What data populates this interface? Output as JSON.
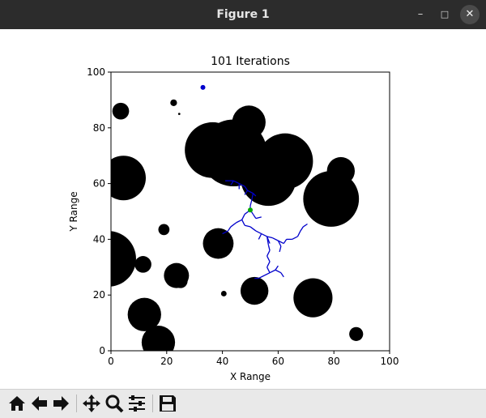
{
  "window": {
    "title": "Figure 1",
    "minimize_glyph": "–",
    "maximize_glyph": "□",
    "close_glyph": "✕"
  },
  "toolbar": {
    "buttons": [
      {
        "name": "home-icon"
      },
      {
        "name": "back-arrow-icon"
      },
      {
        "name": "forward-arrow-icon"
      },
      {
        "name": "pan-icon"
      },
      {
        "name": "zoom-icon"
      },
      {
        "name": "configure-subplots-icon"
      },
      {
        "name": "save-icon"
      }
    ]
  },
  "chart_data": {
    "type": "scatter",
    "title": "101 Iterations",
    "xlabel": "X Range",
    "ylabel": "Y Range",
    "xlim": [
      0,
      100
    ],
    "ylim": [
      0,
      100
    ],
    "xticks": [
      "0",
      "20",
      "40",
      "60",
      "80",
      "100"
    ],
    "yticks": [
      "0",
      "20",
      "40",
      "60",
      "80",
      "100"
    ],
    "grid": false,
    "obstacle_color": "#000000",
    "tree_color": "#0000cc",
    "start_color": "#0000cc",
    "goal_color": "#00aa00",
    "obstacles": [
      {
        "x": 3.5,
        "y": 86,
        "r": 3
      },
      {
        "x": 22.5,
        "y": 89,
        "r": 1.2
      },
      {
        "x": 24.5,
        "y": 85,
        "r": 0.4
      },
      {
        "x": 4.5,
        "y": 62,
        "r": 8
      },
      {
        "x": 49.5,
        "y": 82,
        "r": 6
      },
      {
        "x": 36.5,
        "y": 72,
        "r": 10
      },
      {
        "x": 44,
        "y": 71,
        "r": 12
      },
      {
        "x": 56.5,
        "y": 62,
        "r": 10
      },
      {
        "x": 62.5,
        "y": 68,
        "r": 10
      },
      {
        "x": 82.5,
        "y": 64.5,
        "r": 5
      },
      {
        "x": 79,
        "y": 54.5,
        "r": 10
      },
      {
        "x": 19,
        "y": 43.5,
        "r": 2
      },
      {
        "x": 38.5,
        "y": 38.5,
        "r": 5.5
      },
      {
        "x": -1,
        "y": 33,
        "r": 10
      },
      {
        "x": 11.5,
        "y": 31,
        "r": 3
      },
      {
        "x": 23.5,
        "y": 27,
        "r": 4.5
      },
      {
        "x": 25,
        "y": 25,
        "r": 2.5
      },
      {
        "x": 40.5,
        "y": 20.5,
        "r": 1
      },
      {
        "x": 51.5,
        "y": 21.5,
        "r": 5
      },
      {
        "x": 72.5,
        "y": 19,
        "r": 7
      },
      {
        "x": 12,
        "y": 13,
        "r": 6
      },
      {
        "x": 17,
        "y": 3,
        "r": 6
      },
      {
        "x": 88,
        "y": 6,
        "r": 2.5
      }
    ],
    "start_point": {
      "x": 33,
      "y": 94.5
    },
    "goal_point": {
      "x": 50,
      "y": 50.5
    },
    "tree_edges": [
      [
        [
          41,
          61
        ],
        [
          44,
          61
        ]
      ],
      [
        [
          44,
          61
        ],
        [
          46,
          60
        ]
      ],
      [
        [
          46,
          60
        ],
        [
          48,
          59
        ]
      ],
      [
        [
          48,
          59
        ],
        [
          49,
          57.5
        ]
      ],
      [
        [
          49,
          57.5
        ],
        [
          51,
          56.5
        ]
      ],
      [
        [
          51,
          56.5
        ],
        [
          52,
          55.5
        ]
      ],
      [
        [
          51,
          56.5
        ],
        [
          50.5,
          54
        ]
      ],
      [
        [
          50.5,
          54
        ],
        [
          50,
          52
        ]
      ],
      [
        [
          50,
          52
        ],
        [
          50,
          50.5
        ]
      ],
      [
        [
          50,
          50.5
        ],
        [
          51,
          49
        ]
      ],
      [
        [
          51,
          49
        ],
        [
          52,
          47.5
        ]
      ],
      [
        [
          52,
          47.5
        ],
        [
          54,
          48
        ]
      ],
      [
        [
          50,
          50.5
        ],
        [
          48,
          49
        ]
      ],
      [
        [
          48,
          49
        ],
        [
          47,
          47
        ]
      ],
      [
        [
          47,
          47
        ],
        [
          45,
          46
        ]
      ],
      [
        [
          45,
          46
        ],
        [
          43,
          44.5
        ]
      ],
      [
        [
          43,
          44.5
        ],
        [
          42,
          43
        ]
      ],
      [
        [
          42,
          43
        ],
        [
          40,
          42
        ]
      ],
      [
        [
          47,
          47
        ],
        [
          48,
          45
        ]
      ],
      [
        [
          48,
          45
        ],
        [
          50,
          44.5
        ]
      ],
      [
        [
          50,
          44.5
        ],
        [
          52,
          43
        ]
      ],
      [
        [
          52,
          43
        ],
        [
          54,
          42
        ]
      ],
      [
        [
          54,
          42
        ],
        [
          56,
          41
        ]
      ],
      [
        [
          56,
          41
        ],
        [
          58,
          40.5
        ]
      ],
      [
        [
          58,
          40.5
        ],
        [
          60,
          39.5
        ]
      ],
      [
        [
          60,
          39.5
        ],
        [
          62,
          38.5
        ]
      ],
      [
        [
          62,
          38.5
        ],
        [
          63,
          40
        ]
      ],
      [
        [
          60,
          39.5
        ],
        [
          61,
          37.5
        ]
      ],
      [
        [
          61,
          37.5
        ],
        [
          60.5,
          35.5
        ]
      ],
      [
        [
          63,
          40
        ],
        [
          65,
          40
        ]
      ],
      [
        [
          65,
          40
        ],
        [
          67,
          41
        ]
      ],
      [
        [
          67,
          41
        ],
        [
          68,
          43
        ]
      ],
      [
        [
          68,
          43
        ],
        [
          69,
          44.5
        ]
      ],
      [
        [
          69,
          44.5
        ],
        [
          70.5,
          45.5
        ]
      ],
      [
        [
          56,
          41
        ],
        [
          57,
          38.5
        ]
      ],
      [
        [
          56,
          41
        ],
        [
          56.5,
          38
        ]
      ],
      [
        [
          56.5,
          38
        ],
        [
          57,
          36
        ]
      ],
      [
        [
          57,
          36
        ],
        [
          56,
          34
        ]
      ],
      [
        [
          56,
          34
        ],
        [
          57,
          32
        ]
      ],
      [
        [
          57,
          32
        ],
        [
          56,
          30
        ]
      ],
      [
        [
          56,
          30
        ],
        [
          57,
          28
        ]
      ],
      [
        [
          57,
          28
        ],
        [
          55,
          27
        ]
      ],
      [
        [
          55,
          27
        ],
        [
          53,
          26
        ]
      ],
      [
        [
          53,
          26
        ],
        [
          51.5,
          26
        ]
      ],
      [
        [
          57,
          28
        ],
        [
          59,
          29
        ]
      ],
      [
        [
          59,
          29
        ],
        [
          61,
          28
        ]
      ],
      [
        [
          61,
          28
        ],
        [
          62,
          26.5
        ]
      ],
      [
        [
          59,
          29
        ],
        [
          60,
          30.5
        ]
      ],
      [
        [
          54,
          42
        ],
        [
          53,
          40
        ]
      ],
      [
        [
          46,
          60
        ],
        [
          46,
          58
        ]
      ],
      [
        [
          44,
          61
        ],
        [
          43,
          59.5
        ]
      ],
      [
        [
          49,
          57.5
        ],
        [
          48,
          56
        ]
      ]
    ]
  }
}
